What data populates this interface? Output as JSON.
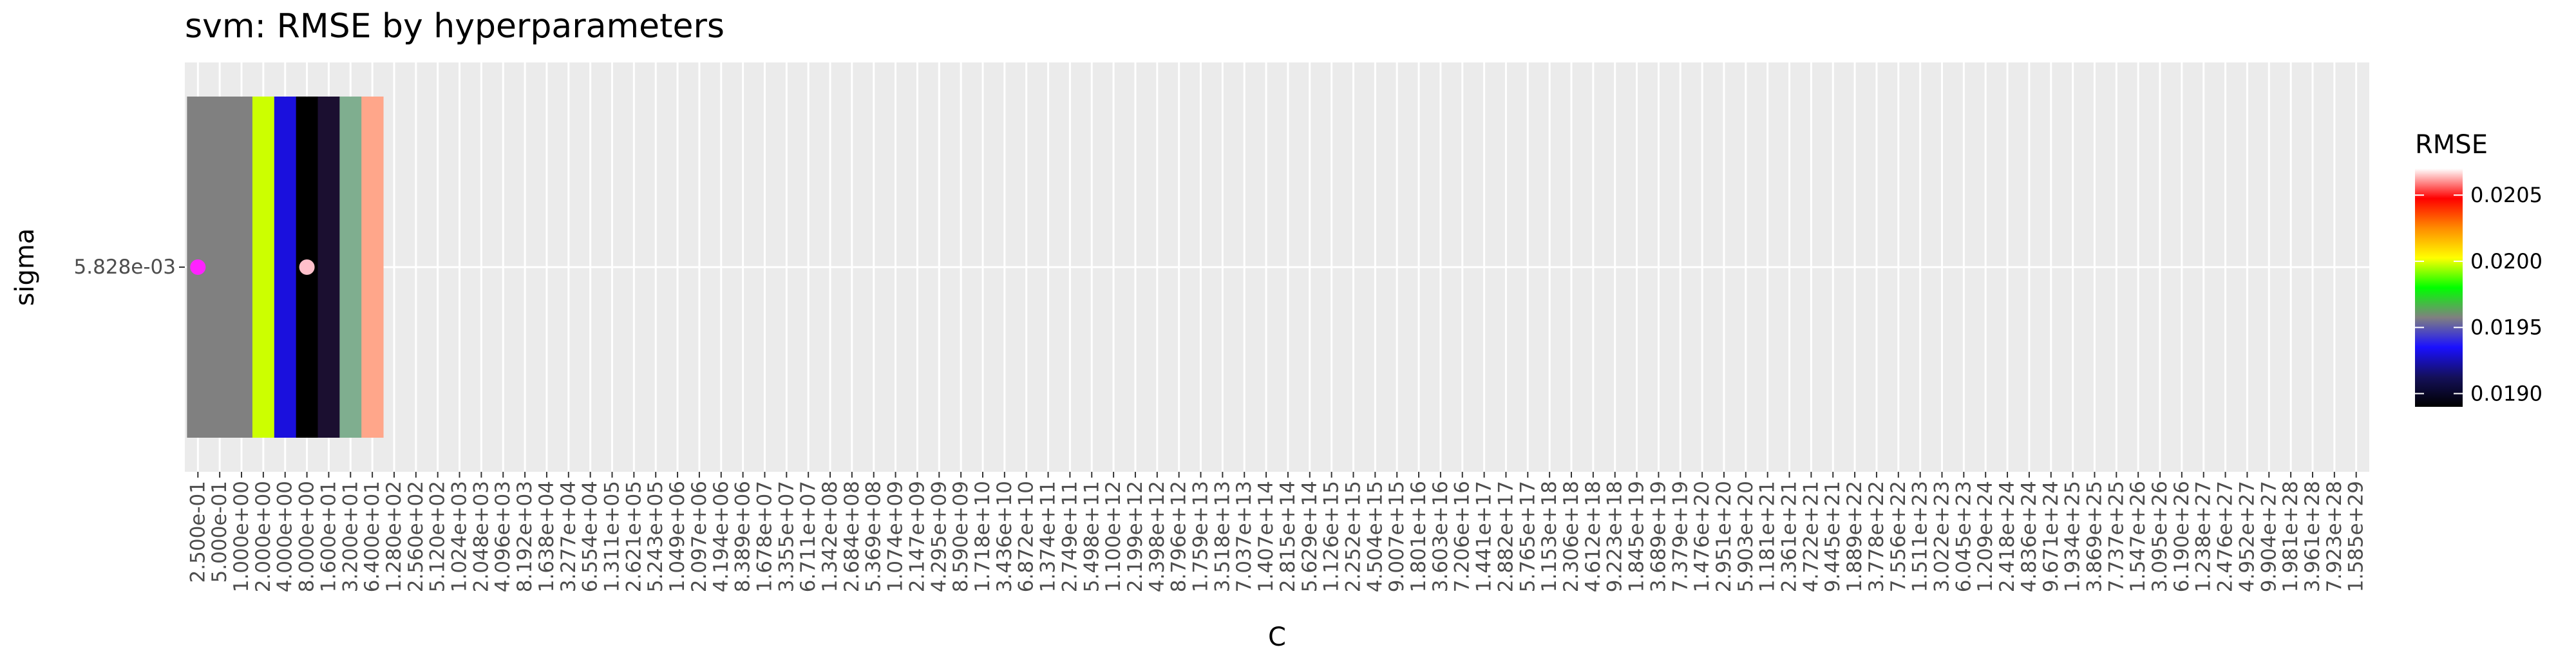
{
  "chart_data": {
    "type": "heatmap",
    "title": "svm: RMSE by hyperparameters",
    "xlabel": "C",
    "ylabel": "sigma",
    "x_categories": [
      "2.500e-01",
      "5.000e-01",
      "1.000e+00",
      "2.000e+00",
      "4.000e+00",
      "8.000e+00",
      "1.600e+01",
      "3.200e+01",
      "6.400e+01",
      "1.280e+02",
      "2.560e+02",
      "5.120e+02",
      "1.024e+03",
      "2.048e+03",
      "4.096e+03",
      "8.192e+03",
      "1.638e+04",
      "3.277e+04",
      "6.554e+04",
      "1.311e+05",
      "2.621e+05",
      "5.243e+05",
      "1.049e+06",
      "2.097e+06",
      "4.194e+06",
      "8.389e+06",
      "1.678e+07",
      "3.355e+07",
      "6.711e+07",
      "1.342e+08",
      "2.684e+08",
      "5.369e+08",
      "1.074e+09",
      "2.147e+09",
      "4.295e+09",
      "8.590e+09",
      "1.718e+10",
      "3.436e+10",
      "6.872e+10",
      "1.374e+11",
      "2.749e+11",
      "5.498e+11",
      "1.100e+12",
      "2.199e+12",
      "4.398e+12",
      "8.796e+12",
      "1.759e+13",
      "3.518e+13",
      "7.037e+13",
      "1.407e+14",
      "2.815e+14",
      "5.629e+14",
      "1.126e+15",
      "2.252e+15",
      "4.504e+15",
      "9.007e+15",
      "1.801e+16",
      "3.603e+16",
      "7.206e+16",
      "1.441e+17",
      "2.882e+17",
      "5.765e+17",
      "1.153e+18",
      "2.306e+18",
      "4.612e+18",
      "9.223e+18",
      "1.845e+19",
      "3.689e+19",
      "7.379e+19",
      "1.476e+20",
      "2.951e+20",
      "5.903e+20",
      "1.181e+21",
      "2.361e+21",
      "4.722e+21",
      "9.445e+21",
      "1.889e+22",
      "3.778e+22",
      "7.556e+22",
      "1.511e+23",
      "3.022e+23",
      "6.045e+23",
      "1.209e+24",
      "2.418e+24",
      "4.836e+24",
      "9.671e+24",
      "1.934e+25",
      "3.869e+25",
      "7.737e+25",
      "1.547e+26",
      "3.095e+26",
      "6.190e+26",
      "1.238e+27",
      "2.476e+27",
      "4.952e+27",
      "9.904e+27",
      "1.981e+28",
      "3.961e+28",
      "7.923e+28",
      "1.585e+29"
    ],
    "y_categories": [
      "5.828e-03"
    ],
    "cells": [
      {
        "x": "2.500e-01",
        "y": "5.828e-03",
        "value": 0.0195,
        "color": "#808080"
      },
      {
        "x": "5.000e-01",
        "y": "5.828e-03",
        "value": 0.0195,
        "color": "#808080"
      },
      {
        "x": "1.000e+00",
        "y": "5.828e-03",
        "value": 0.0195,
        "color": "#808080"
      },
      {
        "x": "2.000e+00",
        "y": "5.828e-03",
        "value": 0.0198,
        "color": "#ccff00"
      },
      {
        "x": "4.000e+00",
        "y": "5.828e-03",
        "value": 0.0193,
        "color": "#1a10dd"
      },
      {
        "x": "8.000e+00",
        "y": "5.828e-03",
        "value": 0.01895,
        "color": "#000000"
      },
      {
        "x": "1.600e+01",
        "y": "5.828e-03",
        "value": 0.01905,
        "color": "#1b0f30"
      },
      {
        "x": "3.200e+01",
        "y": "5.828e-03",
        "value": 0.01955,
        "color": "#7fae8f"
      },
      {
        "x": "6.400e+01",
        "y": "5.828e-03",
        "value": 0.02055,
        "color": "#ffa68a"
      }
    ],
    "markers": [
      {
        "x": "2.500e-01",
        "y": "5.828e-03",
        "color": "#ff22ff"
      },
      {
        "x": "8.000e+00",
        "y": "5.828e-03",
        "color": "#ffc0cb"
      }
    ],
    "legend": {
      "title": "RMSE",
      "position": "right",
      "range": [
        0.0189,
        0.0207
      ],
      "breaks": [
        0.019,
        0.0195,
        0.02,
        0.0205
      ],
      "break_labels": [
        "0.0190",
        "0.0195",
        "0.0200",
        "0.0205"
      ],
      "colors": [
        "#000000",
        "#14105a",
        "#1a10ff",
        "#808080",
        "#00ff00",
        "#ffff00",
        "#ff8c00",
        "#ff0000",
        "#ffffff"
      ]
    },
    "grid": true,
    "panel_background": "#ebebeb"
  }
}
